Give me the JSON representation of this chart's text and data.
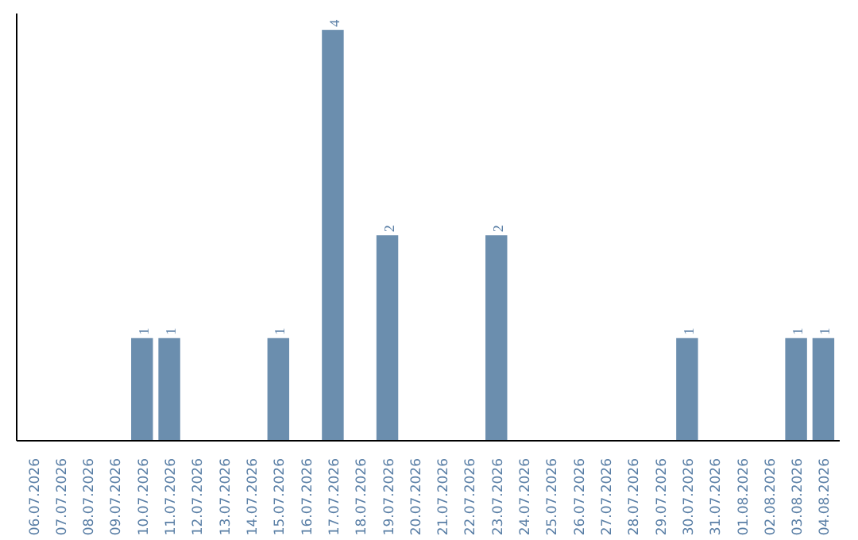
{
  "chart_data": {
    "type": "bar",
    "categories": [
      "06.07.2026",
      "07.07.2026",
      "08.07.2026",
      "09.07.2026",
      "10.07.2026",
      "11.07.2026",
      "12.07.2026",
      "13.07.2026",
      "14.07.2026",
      "15.07.2026",
      "16.07.2026",
      "17.07.2026",
      "18.07.2026",
      "19.07.2026",
      "20.07.2026",
      "21.07.2026",
      "22.07.2026",
      "23.07.2026",
      "24.07.2026",
      "25.07.2026",
      "26.07.2026",
      "27.07.2026",
      "28.07.2026",
      "29.07.2026",
      "30.07.2026",
      "31.07.2026",
      "01.08.2026",
      "02.08.2026",
      "03.08.2026",
      "04.08.2026"
    ],
    "values": [
      0,
      0,
      0,
      0,
      1,
      1,
      0,
      0,
      0,
      1,
      0,
      4,
      0,
      2,
      0,
      0,
      0,
      2,
      0,
      0,
      0,
      0,
      0,
      0,
      1,
      0,
      0,
      0,
      1,
      1
    ],
    "value_labels": [
      null,
      null,
      null,
      null,
      "1",
      "1",
      null,
      null,
      null,
      "1",
      null,
      "4",
      null,
      "2",
      null,
      null,
      null,
      "2",
      null,
      null,
      null,
      null,
      null,
      null,
      "1",
      null,
      null,
      null,
      "1",
      "1"
    ],
    "color": "#6b8eae",
    "grid": false
  }
}
